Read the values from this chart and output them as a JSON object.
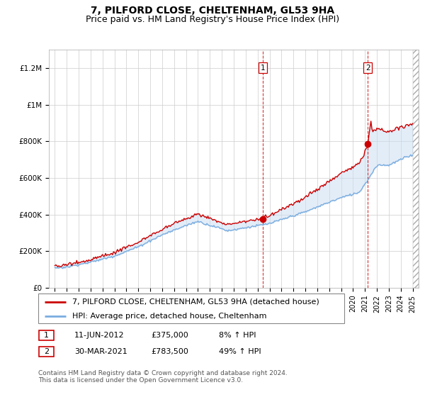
{
  "title": "7, PILFORD CLOSE, CHELTENHAM, GL53 9HA",
  "subtitle": "Price paid vs. HM Land Registry's House Price Index (HPI)",
  "ylabel_ticks": [
    "£0",
    "£200K",
    "£400K",
    "£600K",
    "£800K",
    "£1M",
    "£1.2M"
  ],
  "ytick_values": [
    0,
    200000,
    400000,
    600000,
    800000,
    1000000,
    1200000
  ],
  "ylim": [
    0,
    1300000
  ],
  "xlim_start": 1994.5,
  "xlim_end": 2025.5,
  "red_line_color": "#cc0000",
  "blue_line_color": "#7aade0",
  "vline_color": "#cc0000",
  "grid_color": "#cccccc",
  "bg_color": "#ffffff",
  "sale1_x": 2012.44,
  "sale1_y": 375000,
  "sale1_label": "1",
  "sale2_x": 2021.24,
  "sale2_y": 783500,
  "sale2_label": "2",
  "legend_line1": "7, PILFORD CLOSE, CHELTENHAM, GL53 9HA (detached house)",
  "legend_line2": "HPI: Average price, detached house, Cheltenham",
  "table_row1": [
    "1",
    "11-JUN-2012",
    "£375,000",
    "8% ↑ HPI"
  ],
  "table_row2": [
    "2",
    "30-MAR-2021",
    "£783,500",
    "49% ↑ HPI"
  ],
  "footer": "Contains HM Land Registry data © Crown copyright and database right 2024.\nThis data is licensed under the Open Government Licence v3.0.",
  "title_fontsize": 10,
  "subtitle_fontsize": 9,
  "tick_fontsize": 7.5,
  "legend_fontsize": 8,
  "table_fontsize": 8,
  "footer_fontsize": 6.5
}
